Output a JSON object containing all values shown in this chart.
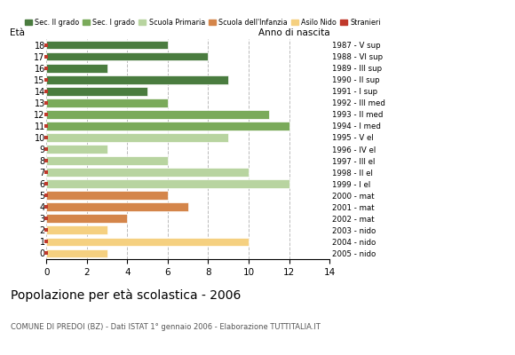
{
  "ages": [
    18,
    17,
    16,
    15,
    14,
    13,
    12,
    11,
    10,
    9,
    8,
    7,
    6,
    5,
    4,
    3,
    2,
    1,
    0
  ],
  "anno_nascita_labels": [
    "1987 - V sup",
    "1988 - VI sup",
    "1989 - III sup",
    "1990 - II sup",
    "1991 - I sup",
    "1992 - III med",
    "1993 - II med",
    "1994 - I med",
    "1995 - V el",
    "1996 - IV el",
    "1997 - III el",
    "1998 - II el",
    "1999 - I el",
    "2000 - mat",
    "2001 - mat",
    "2002 - mat",
    "2003 - nido",
    "2004 - nido",
    "2005 - nido"
  ],
  "values": [
    6,
    8,
    3,
    9,
    5,
    6,
    11,
    12,
    9,
    3,
    6,
    10,
    12,
    6,
    7,
    4,
    3,
    10,
    3
  ],
  "colors": {
    "Sec. II grado": "#4a7c3f",
    "Sec. I grado": "#7aaa5a",
    "Scuola Primaria": "#b8d4a0",
    "Scuola dell'Infanzia": "#d4854a",
    "Asilo Nido": "#f5d080",
    "Stranieri": "#c0392b"
  },
  "category_by_age": {
    "18": "Sec. II grado",
    "17": "Sec. II grado",
    "16": "Sec. II grado",
    "15": "Sec. II grado",
    "14": "Sec. II grado",
    "13": "Sec. I grado",
    "12": "Sec. I grado",
    "11": "Sec. I grado",
    "10": "Scuola Primaria",
    "9": "Scuola Primaria",
    "8": "Scuola Primaria",
    "7": "Scuola Primaria",
    "6": "Scuola Primaria",
    "5": "Scuola dell'Infanzia",
    "4": "Scuola dell'Infanzia",
    "3": "Scuola dell'Infanzia",
    "2": "Asilo Nido",
    "1": "Asilo Nido",
    "0": "Asilo Nido"
  },
  "title": "Popolazione per età scolastica - 2006",
  "subtitle": "COMUNE DI PREDOI (BZ) - Dati ISTAT 1° gennaio 2006 - Elaborazione TUTTITALIA.IT",
  "ylabel_left": "Età",
  "ylabel_right": "Anno di nascita",
  "xlim": [
    0,
    14
  ],
  "xticks": [
    0,
    2,
    4,
    6,
    8,
    10,
    12,
    14
  ],
  "background_color": "#ffffff",
  "grid_color": "#bbbbbb"
}
